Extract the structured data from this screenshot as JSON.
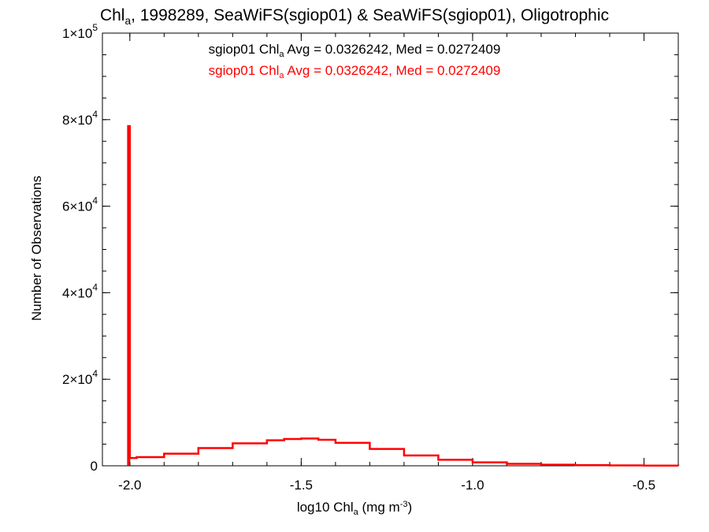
{
  "chart_data": {
    "type": "line",
    "title": {
      "pre": "Chl",
      "sub": "a",
      "post": ", 1998289, SeaWiFS(sgiop01) & SeaWiFS(sgiop01), Oligotrophic"
    },
    "xlabel": {
      "pre": "log10 Chl",
      "sub": "a",
      "mid": " (mg m",
      "sup": "-3",
      "post": ")"
    },
    "ylabel": "Number of Observations",
    "xlim": [
      -2.08,
      -0.4
    ],
    "ylim": [
      0,
      100000
    ],
    "x_ticks": [
      {
        "value": -2.0,
        "label": "-2.0"
      },
      {
        "value": -1.5,
        "label": "-1.5"
      },
      {
        "value": -1.0,
        "label": "-1.0"
      },
      {
        "value": -0.5,
        "label": "-0.5"
      }
    ],
    "y_ticks": [
      {
        "value": 0,
        "mant": "0",
        "exp": ""
      },
      {
        "value": 20000,
        "mant": "2×10",
        "exp": "4"
      },
      {
        "value": 40000,
        "mant": "4×10",
        "exp": "4"
      },
      {
        "value": 60000,
        "mant": "6×10",
        "exp": "4"
      },
      {
        "value": 80000,
        "mant": "8×10",
        "exp": "4"
      },
      {
        "value": 100000,
        "mant": "1×10",
        "exp": "5"
      }
    ],
    "annotations": [
      {
        "pre": "sgiop01 Chl",
        "sub": "a",
        "post": " Avg = 0.0326242, Med = 0.0272409",
        "color": "#000000"
      },
      {
        "pre": "sgiop01 Chl",
        "sub": "a",
        "post": " Avg = 0.0326242, Med = 0.0272409",
        "color": "#ff0000"
      }
    ],
    "series": [
      {
        "color": "#ff0000",
        "x": [
          -2.005,
          -2.0,
          -1.98,
          -1.9,
          -1.8,
          -1.7,
          -1.6,
          -1.55,
          -1.5,
          -1.45,
          -1.4,
          -1.3,
          -1.2,
          -1.1,
          -1.0,
          -0.9,
          -0.8,
          -0.7,
          -0.6,
          -0.5,
          -0.4
        ],
        "y": [
          78500,
          1800,
          2000,
          2800,
          4100,
          5200,
          5900,
          6200,
          6300,
          6000,
          5300,
          3900,
          2400,
          1400,
          800,
          450,
          260,
          150,
          80,
          40,
          20
        ]
      }
    ]
  }
}
